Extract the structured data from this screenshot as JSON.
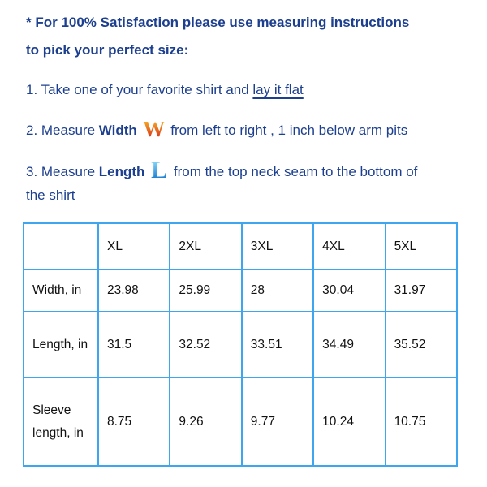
{
  "intro": {
    "line1": "* For 100% Satisfaction please use measuring instructions",
    "line2": "to pick your perfect size:"
  },
  "steps": [
    {
      "prefix": "1. Take one of your favorite shirt and ",
      "link": "lay it flat"
    },
    {
      "prefix": "2. Measure ",
      "bold": "Width",
      "letter": "W",
      "suffix": "from left to right , 1 inch below arm pits"
    },
    {
      "prefix": "3. Measure ",
      "bold": "Length",
      "letter": "L",
      "suffix": "from the top neck seam to the bottom of",
      "suffix2": "the shirt"
    }
  ],
  "table": {
    "headers": [
      "",
      "XL",
      "2XL",
      "3XL",
      "4XL",
      "5XL"
    ],
    "rows": [
      {
        "label": "Width, in",
        "values": [
          "23.98",
          "25.99",
          "28",
          "30.04",
          "31.97"
        ]
      },
      {
        "label": "Length, in",
        "values": [
          "31.5",
          "32.52",
          "33.51",
          "34.49",
          "35.52"
        ]
      },
      {
        "label": "Sleeve length, in",
        "values": [
          "8.75",
          "9.26",
          "9.77",
          "10.24",
          "10.75"
        ]
      }
    ]
  },
  "colors": {
    "text": "#1d3f8f",
    "border": "#3ea5ef"
  }
}
